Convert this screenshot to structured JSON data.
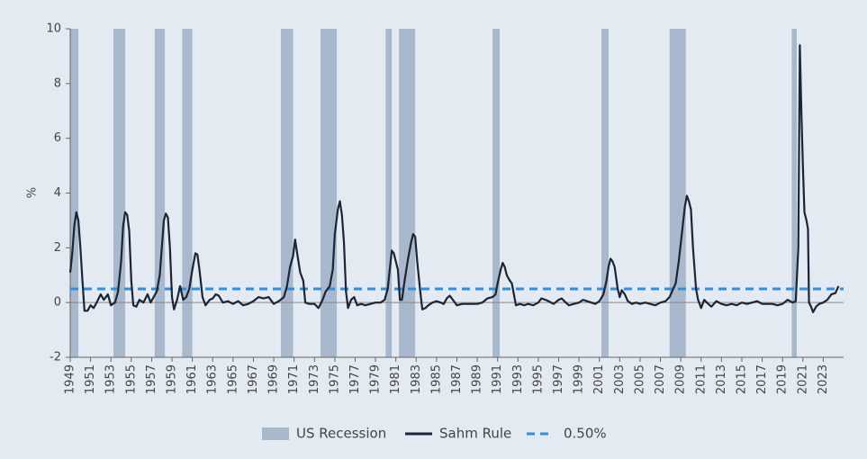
{
  "chart_data": {
    "type": "line",
    "y_label": "%",
    "xlim": [
      1949,
      2025
    ],
    "xticks": [
      1949,
      1951,
      1953,
      1955,
      1957,
      1959,
      1961,
      1963,
      1965,
      1967,
      1969,
      1971,
      1973,
      1975,
      1977,
      1979,
      1981,
      1983,
      1985,
      1987,
      1989,
      1991,
      1993,
      1995,
      1997,
      1999,
      2001,
      2003,
      2005,
      2007,
      2009,
      2011,
      2013,
      2015,
      2017,
      2019,
      2021,
      2023
    ],
    "ylim": [
      -2,
      10
    ],
    "yticks": [
      -2,
      0,
      2,
      4,
      6,
      8,
      10
    ],
    "legend": "bottom",
    "recessions": {
      "name": "US Recession",
      "color": "#a9b8cc",
      "ranges": [
        [
          1949.0,
          1949.8
        ],
        [
          1953.25,
          1954.4
        ],
        [
          1957.3,
          1958.3
        ],
        [
          1960.0,
          1961.0
        ],
        [
          1969.7,
          1970.9
        ],
        [
          1973.6,
          1975.2
        ],
        [
          1980.0,
          1980.6
        ],
        [
          1981.3,
          1982.9
        ],
        [
          1990.5,
          1991.2
        ],
        [
          2001.2,
          2001.9
        ],
        [
          2007.9,
          2009.5
        ],
        [
          2019.9,
          2020.4
        ]
      ]
    },
    "threshold": {
      "name": "0.50%",
      "color": "#2f8fe0",
      "value": 0.5,
      "dashed": true
    },
    "x": [
      1949.0,
      1949.2,
      1949.4,
      1949.6,
      1949.8,
      1950.0,
      1950.2,
      1950.4,
      1950.7,
      1951.0,
      1951.3,
      1951.6,
      1952.0,
      1952.3,
      1952.7,
      1953.0,
      1953.4,
      1953.7,
      1954.0,
      1954.2,
      1954.4,
      1954.6,
      1954.8,
      1955.0,
      1955.2,
      1955.5,
      1955.8,
      1956.2,
      1956.6,
      1956.9,
      1957.2,
      1957.5,
      1957.8,
      1958.0,
      1958.2,
      1958.4,
      1958.6,
      1958.8,
      1959.0,
      1959.2,
      1959.5,
      1959.8,
      1960.1,
      1960.4,
      1960.7,
      1961.0,
      1961.3,
      1961.5,
      1961.7,
      1962.0,
      1962.3,
      1962.7,
      1963.0,
      1963.3,
      1963.6,
      1964.0,
      1964.5,
      1965.0,
      1965.5,
      1966.0,
      1966.5,
      1967.0,
      1967.5,
      1968.0,
      1968.5,
      1969.0,
      1969.5,
      1970.0,
      1970.3,
      1970.6,
      1970.9,
      1971.1,
      1971.3,
      1971.6,
      1971.9,
      1972.1,
      1972.5,
      1973.0,
      1973.4,
      1973.8,
      1974.1,
      1974.5,
      1974.8,
      1975.0,
      1975.3,
      1975.5,
      1975.7,
      1975.9,
      1976.1,
      1976.3,
      1976.6,
      1976.9,
      1977.2,
      1977.6,
      1978.0,
      1978.5,
      1979.0,
      1979.5,
      1979.9,
      1980.2,
      1980.4,
      1980.6,
      1980.8,
      1981.0,
      1981.2,
      1981.4,
      1981.6,
      1981.9,
      1982.2,
      1982.5,
      1982.7,
      1982.9,
      1983.1,
      1983.4,
      1983.6,
      1983.9,
      1984.2,
      1984.6,
      1985.0,
      1985.4,
      1985.7,
      1986.0,
      1986.3,
      1986.7,
      1987.0,
      1987.5,
      1988.0,
      1988.5,
      1989.0,
      1989.5,
      1990.0,
      1990.5,
      1990.8,
      1991.0,
      1991.3,
      1991.5,
      1991.7,
      1991.9,
      1992.2,
      1992.4,
      1992.6,
      1992.8,
      1993.2,
      1993.6,
      1994.0,
      1994.5,
      1995.0,
      1995.3,
      1995.7,
      1996.0,
      1996.5,
      1997.0,
      1997.3,
      1997.7,
      1998.0,
      1998.5,
      1999.0,
      1999.4,
      1999.8,
      2000.2,
      2000.6,
      2001.0,
      2001.4,
      2001.7,
      2001.9,
      2002.1,
      2002.3,
      2002.5,
      2002.8,
      2003.0,
      2003.2,
      2003.5,
      2003.8,
      2004.2,
      2004.6,
      2005.0,
      2005.5,
      2006.0,
      2006.5,
      2007.0,
      2007.5,
      2007.9,
      2008.2,
      2008.5,
      2008.8,
      2009.1,
      2009.4,
      2009.6,
      2009.8,
      2010.0,
      2010.2,
      2010.5,
      2010.7,
      2011.0,
      2011.3,
      2011.7,
      2012.0,
      2012.5,
      2013.0,
      2013.5,
      2014.0,
      2014.5,
      2015.0,
      2015.5,
      2016.0,
      2016.5,
      2017.0,
      2017.5,
      2018.0,
      2018.5,
      2019.0,
      2019.5,
      2020.0,
      2020.3,
      2020.55,
      2020.7,
      2020.85,
      2021.0,
      2021.15,
      2021.35,
      2021.5,
      2021.6,
      2021.8,
      2022.0,
      2022.3,
      2022.6,
      2023.0,
      2023.4,
      2023.8,
      2024.2,
      2024.5
    ],
    "series": [
      {
        "name": "Sahm Rule",
        "color": "#1a2535",
        "values": [
          1.1,
          1.8,
          2.8,
          3.3,
          3.0,
          2.0,
          0.8,
          -0.3,
          -0.3,
          -0.1,
          -0.2,
          0.0,
          0.3,
          0.1,
          0.3,
          -0.1,
          0.0,
          0.4,
          1.5,
          2.8,
          3.3,
          3.2,
          2.6,
          0.8,
          -0.1,
          -0.15,
          0.1,
          0.0,
          0.3,
          0.0,
          0.2,
          0.4,
          1.0,
          2.0,
          3.0,
          3.25,
          3.1,
          2.0,
          0.2,
          -0.25,
          0.1,
          0.6,
          0.1,
          0.2,
          0.5,
          1.2,
          1.8,
          1.75,
          1.2,
          0.2,
          -0.1,
          0.1,
          0.15,
          0.3,
          0.25,
          0.0,
          0.05,
          -0.05,
          0.05,
          -0.1,
          -0.05,
          0.05,
          0.2,
          0.15,
          0.2,
          -0.05,
          0.05,
          0.2,
          0.6,
          1.3,
          1.7,
          2.3,
          1.8,
          1.1,
          0.8,
          0.0,
          -0.05,
          -0.05,
          -0.2,
          0.1,
          0.4,
          0.6,
          1.2,
          2.5,
          3.4,
          3.7,
          3.2,
          2.2,
          0.4,
          -0.2,
          0.1,
          0.2,
          -0.1,
          -0.05,
          -0.1,
          -0.05,
          0.0,
          0.0,
          0.1,
          0.5,
          1.2,
          1.9,
          1.8,
          1.5,
          1.2,
          0.1,
          0.1,
          0.9,
          1.6,
          2.2,
          2.5,
          2.4,
          1.5,
          0.4,
          -0.25,
          -0.2,
          -0.1,
          0.0,
          0.05,
          0.0,
          -0.05,
          0.15,
          0.25,
          0.05,
          -0.1,
          -0.05,
          -0.05,
          -0.05,
          -0.05,
          0.0,
          0.15,
          0.2,
          0.3,
          0.7,
          1.2,
          1.45,
          1.3,
          1.0,
          0.8,
          0.7,
          0.3,
          -0.1,
          -0.05,
          -0.1,
          -0.05,
          -0.1,
          0.0,
          0.15,
          0.1,
          0.05,
          -0.05,
          0.1,
          0.15,
          0.0,
          -0.1,
          -0.05,
          0.0,
          0.1,
          0.05,
          0.0,
          -0.05,
          0.05,
          0.3,
          0.8,
          1.3,
          1.6,
          1.5,
          1.3,
          0.5,
          0.2,
          0.45,
          0.3,
          0.05,
          -0.05,
          0.0,
          -0.05,
          0.0,
          -0.05,
          -0.1,
          0.0,
          0.05,
          0.2,
          0.45,
          0.7,
          1.5,
          2.5,
          3.5,
          3.9,
          3.7,
          3.4,
          2.0,
          0.5,
          0.1,
          -0.2,
          0.1,
          -0.05,
          -0.15,
          0.05,
          -0.05,
          -0.1,
          -0.05,
          -0.1,
          0.0,
          -0.05,
          0.0,
          0.05,
          -0.05,
          -0.05,
          -0.05,
          -0.1,
          -0.05,
          0.1,
          0.0,
          0.05,
          2.0,
          9.4,
          7.0,
          5.0,
          3.3,
          3.0,
          2.7,
          0.0,
          -0.15,
          -0.35,
          -0.15,
          -0.05,
          0.0,
          0.1,
          0.3,
          0.35,
          0.6
        ]
      }
    ]
  }
}
